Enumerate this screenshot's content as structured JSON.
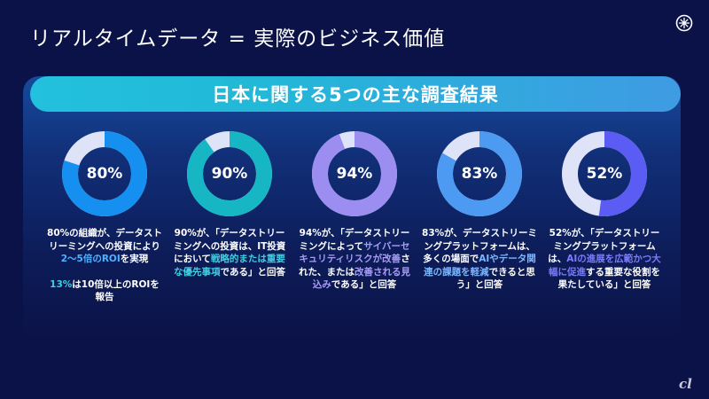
{
  "slide": {
    "title": "リアルタイムデータ = 実際のビジネス価値",
    "banner_title": "日本に関する5つの主な調査結果",
    "logo_icon": "confluent-logo-icon",
    "watermark": "cnet-japan-watermark"
  },
  "colors": {
    "background": "#0b1247",
    "banner": "#22c1dd",
    "ring_track": "#dfe3f7",
    "ring_blue": "#1590f0",
    "ring_teal": "#16b6c4",
    "ring_purple": "#9b8ef0",
    "ring_light_blue": "#4c9af1",
    "ring_indigo": "#5a5cf3"
  },
  "stats": [
    {
      "percent_label": "80%",
      "value": 0.8,
      "ring_color": "#1590f0",
      "text_before": "80%の組織が、データストリーミングへの投資により",
      "highlight": "2〜5倍のROI",
      "text_after": "を実現",
      "extra_highlight": "13%",
      "extra_text": "は10倍以上のROIを報告"
    },
    {
      "percent_label": "90%",
      "value": 0.9,
      "ring_color": "#16b6c4",
      "text_before": "90%が、「データストリーミングへの投資は、IT投資において",
      "highlight": "戦略的または重要な優先事項",
      "text_after": "である」と回答"
    },
    {
      "percent_label": "94%",
      "value": 0.94,
      "ring_color": "#9b8ef0",
      "text_before": "94%が、「データストリーミングによって",
      "highlight": "サイバーセキュリティリスクが改善",
      "text_middle": "された、または",
      "highlight2": "改善される見込み",
      "text_after": "である」と回答"
    },
    {
      "percent_label": "83%",
      "value": 0.83,
      "ring_color": "#4c9af1",
      "text_before": "83%が、データストリーミングプラットフォームは、多くの場面で",
      "highlight": "AIやデータ関連の課題を軽減",
      "text_after": "できると思う」と回答"
    },
    {
      "percent_label": "52%",
      "value": 0.52,
      "ring_color": "#5a5cf3",
      "text_before": "52%が、「データストリーミングプラットフォームは、",
      "highlight": "AIの進展を広範かつ大幅に促進",
      "text_after": "する重要な役割を果たしている」と回答"
    }
  ]
}
